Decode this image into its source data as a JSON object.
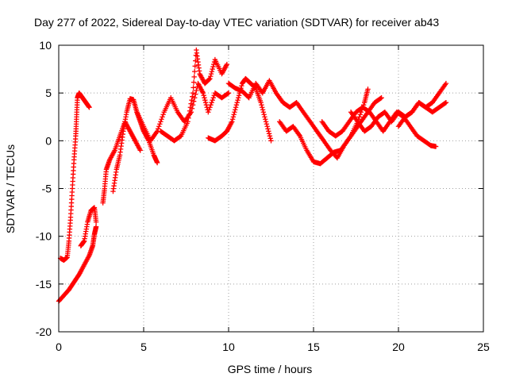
{
  "chart_data": {
    "type": "scatter",
    "title": "Day 277 of 2022, Sidereal Day-to-day VTEC variation (SDTVAR) for receiver ab43",
    "xlabel": "GPS time / hours",
    "ylabel": "SDTVAR / TECUs",
    "xlim": [
      0,
      25
    ],
    "ylim": [
      -20,
      10
    ],
    "xticks": [
      0,
      5,
      10,
      15,
      20,
      25
    ],
    "yticks": [
      -20,
      -15,
      -10,
      -5,
      0,
      5,
      10
    ],
    "xtick_labels": [
      "0",
      "5",
      "10",
      "15",
      "20",
      "25"
    ],
    "ytick_labels": [
      "-20",
      "-15",
      "-10",
      "-5",
      "0",
      "5",
      "10"
    ],
    "grid": true,
    "marker": "+",
    "color": "#ff0000",
    "series": [
      {
        "name": "track-a",
        "points": [
          [
            0.0,
            -16.8
          ],
          [
            0.3,
            -16.2
          ],
          [
            0.6,
            -15.6
          ],
          [
            0.9,
            -14.8
          ],
          [
            1.2,
            -14.0
          ],
          [
            1.5,
            -13.0
          ],
          [
            1.8,
            -12.0
          ],
          [
            2.0,
            -11.0
          ],
          [
            2.1,
            -9.8
          ],
          [
            2.2,
            -9.0
          ]
        ]
      },
      {
        "name": "track-b",
        "points": [
          [
            0.1,
            -12.3
          ],
          [
            0.3,
            -12.5
          ],
          [
            0.5,
            -12.2
          ],
          [
            0.6,
            -10.5
          ],
          [
            0.7,
            -8.0
          ],
          [
            0.8,
            -5.0
          ],
          [
            0.9,
            -2.0
          ],
          [
            1.0,
            0.5
          ],
          [
            1.05,
            2.5
          ],
          [
            1.1,
            4.5
          ],
          [
            1.2,
            5.0
          ],
          [
            1.4,
            4.5
          ],
          [
            1.6,
            4.0
          ],
          [
            1.8,
            3.5
          ]
        ]
      },
      {
        "name": "track-c",
        "points": [
          [
            1.3,
            -11.0
          ],
          [
            1.5,
            -10.5
          ],
          [
            1.7,
            -8.5
          ],
          [
            1.9,
            -7.3
          ],
          [
            2.1,
            -7.0
          ],
          [
            2.2,
            -8.5
          ]
        ]
      },
      {
        "name": "track-d",
        "points": [
          [
            2.6,
            -6.5
          ],
          [
            2.7,
            -5.0
          ],
          [
            2.8,
            -3.0
          ],
          [
            3.0,
            -2.0
          ],
          [
            3.3,
            -1.0
          ],
          [
            3.6,
            0.5
          ],
          [
            3.9,
            2.0
          ],
          [
            4.2,
            1.0
          ],
          [
            4.5,
            0.0
          ],
          [
            4.8,
            -1.0
          ]
        ]
      },
      {
        "name": "track-e",
        "points": [
          [
            3.2,
            -5.3
          ],
          [
            3.4,
            -3.0
          ],
          [
            3.6,
            -1.5
          ],
          [
            3.8,
            1.0
          ],
          [
            4.0,
            3.0
          ],
          [
            4.2,
            4.4
          ],
          [
            4.4,
            4.3
          ],
          [
            4.6,
            3.0
          ],
          [
            4.8,
            2.0
          ],
          [
            5.0,
            1.0
          ],
          [
            5.3,
            0.0
          ],
          [
            5.6,
            -1.5
          ],
          [
            5.8,
            -2.3
          ]
        ]
      },
      {
        "name": "track-f",
        "points": [
          [
            4.6,
            3.0
          ],
          [
            5.0,
            1.5
          ],
          [
            5.4,
            0.0
          ],
          [
            5.8,
            1.0
          ],
          [
            6.2,
            3.0
          ],
          [
            6.6,
            4.5
          ],
          [
            7.0,
            3.0
          ],
          [
            7.4,
            2.0
          ],
          [
            7.8,
            3.0
          ],
          [
            8.2,
            6.0
          ],
          [
            8.5,
            5.0
          ],
          [
            8.8,
            3.0
          ],
          [
            9.2,
            5.0
          ],
          [
            9.6,
            4.5
          ],
          [
            10.0,
            5.0
          ]
        ]
      },
      {
        "name": "track-g",
        "points": [
          [
            6.0,
            1.0
          ],
          [
            6.4,
            0.5
          ],
          [
            6.8,
            0.0
          ],
          [
            7.2,
            0.5
          ],
          [
            7.6,
            2.0
          ],
          [
            7.9,
            5.0
          ],
          [
            8.1,
            9.5
          ],
          [
            8.3,
            7.0
          ],
          [
            8.6,
            6.0
          ],
          [
            8.9,
            6.5
          ],
          [
            9.2,
            8.5
          ],
          [
            9.6,
            7.0
          ],
          [
            9.9,
            8.0
          ]
        ]
      },
      {
        "name": "track-h",
        "points": [
          [
            8.8,
            0.3
          ],
          [
            9.2,
            0.0
          ],
          [
            9.6,
            0.5
          ],
          [
            9.9,
            1.0
          ],
          [
            10.2,
            2.0
          ],
          [
            10.5,
            4.0
          ],
          [
            10.8,
            6.0
          ],
          [
            11.0,
            6.5
          ],
          [
            11.3,
            6.0
          ],
          [
            11.6,
            5.5
          ],
          [
            11.9,
            4.0
          ],
          [
            12.2,
            2.0
          ],
          [
            12.5,
            0.0
          ]
        ]
      },
      {
        "name": "track-i",
        "points": [
          [
            10.0,
            6.0
          ],
          [
            10.4,
            5.5
          ],
          [
            10.8,
            5.2
          ],
          [
            11.2,
            4.5
          ],
          [
            11.6,
            6.0
          ],
          [
            12.0,
            5.0
          ],
          [
            12.4,
            6.3
          ],
          [
            12.8,
            5.0
          ],
          [
            13.2,
            4.0
          ],
          [
            13.6,
            3.5
          ],
          [
            14.0,
            4.0
          ],
          [
            14.4,
            3.0
          ],
          [
            14.8,
            2.0
          ],
          [
            15.2,
            1.0
          ],
          [
            15.6,
            0.0
          ],
          [
            16.0,
            -1.0
          ],
          [
            16.4,
            -1.8
          ],
          [
            16.8,
            -0.5
          ],
          [
            17.2,
            0.5
          ],
          [
            17.6,
            2.0
          ],
          [
            18.0,
            4.0
          ],
          [
            18.2,
            5.4
          ]
        ]
      },
      {
        "name": "track-j",
        "points": [
          [
            13.0,
            2.0
          ],
          [
            13.4,
            1.0
          ],
          [
            13.8,
            1.5
          ],
          [
            14.2,
            0.5
          ],
          [
            14.6,
            -1.0
          ],
          [
            15.0,
            -2.2
          ],
          [
            15.4,
            -2.4
          ],
          [
            15.8,
            -1.8
          ],
          [
            16.2,
            -1.2
          ],
          [
            16.6,
            -1.0
          ],
          [
            17.0,
            0.0
          ],
          [
            17.4,
            1.0
          ],
          [
            17.8,
            2.0
          ],
          [
            18.2,
            3.0
          ],
          [
            18.6,
            4.0
          ],
          [
            19.0,
            4.5
          ]
        ]
      },
      {
        "name": "track-k",
        "points": [
          [
            15.5,
            2.0
          ],
          [
            15.9,
            1.0
          ],
          [
            16.3,
            0.5
          ],
          [
            16.7,
            1.0
          ],
          [
            17.1,
            2.0
          ],
          [
            17.5,
            3.0
          ],
          [
            17.9,
            3.5
          ],
          [
            18.3,
            3.0
          ],
          [
            18.7,
            2.0
          ],
          [
            19.1,
            1.0
          ],
          [
            19.5,
            2.0
          ],
          [
            19.9,
            3.0
          ],
          [
            20.3,
            2.5
          ],
          [
            20.7,
            1.5
          ],
          [
            21.1,
            0.5
          ],
          [
            21.5,
            0.0
          ],
          [
            21.9,
            -0.5
          ],
          [
            22.2,
            -0.6
          ]
        ]
      },
      {
        "name": "track-l",
        "points": [
          [
            17.2,
            3.0
          ],
          [
            17.6,
            2.0
          ],
          [
            18.0,
            1.0
          ],
          [
            18.4,
            1.5
          ],
          [
            18.8,
            2.5
          ],
          [
            19.2,
            3.0
          ],
          [
            19.6,
            2.0
          ],
          [
            20.0,
            3.0
          ],
          [
            20.4,
            2.5
          ],
          [
            20.8,
            3.0
          ],
          [
            21.2,
            4.0
          ],
          [
            21.6,
            3.5
          ],
          [
            22.0,
            4.0
          ],
          [
            22.4,
            5.0
          ],
          [
            22.8,
            6.0
          ]
        ]
      },
      {
        "name": "track-m",
        "points": [
          [
            20.0,
            1.5
          ],
          [
            20.4,
            2.5
          ],
          [
            20.8,
            3.0
          ],
          [
            21.2,
            4.0
          ],
          [
            21.6,
            3.5
          ],
          [
            22.0,
            3.0
          ],
          [
            22.4,
            3.5
          ],
          [
            22.8,
            4.0
          ]
        ]
      }
    ]
  }
}
